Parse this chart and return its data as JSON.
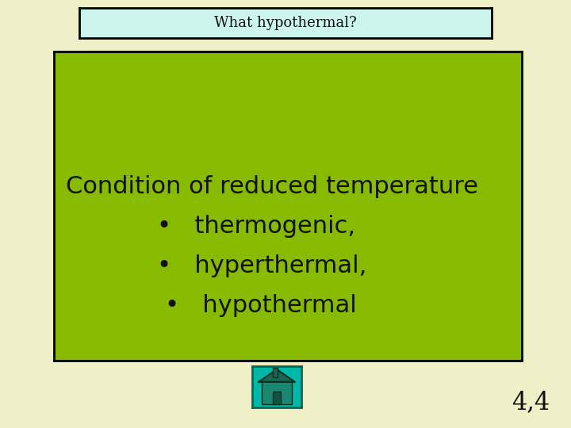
{
  "bg_color": "#f0f0c8",
  "title_text": "What hypothermal?",
  "title_box_color": "#ccf5ee",
  "title_box_edge": "#000000",
  "title_fontsize": 13,
  "main_box_color": "#88bb00",
  "main_box_edge": "#000000",
  "content_line1": "Condition of reduced temperature",
  "content_bullet1": "•   thermogenic,",
  "content_bullet2": "•   hyperthermal,",
  "content_bullet3": "•   hypothermal",
  "content_fontsize": 22,
  "content_color": "#111111",
  "score_text": "4,4",
  "score_fontsize": 22,
  "home_box_color": "#00b8a8",
  "home_box_edge": "#006655"
}
